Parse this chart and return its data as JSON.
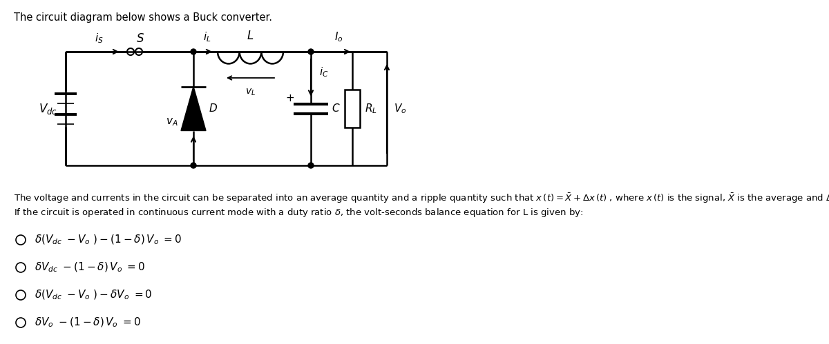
{
  "title": "The circuit diagram below shows a Buck converter.",
  "bg_color": "#ffffff",
  "font_size_title": 10.5,
  "font_size_body": 9.5,
  "font_size_options": 11
}
